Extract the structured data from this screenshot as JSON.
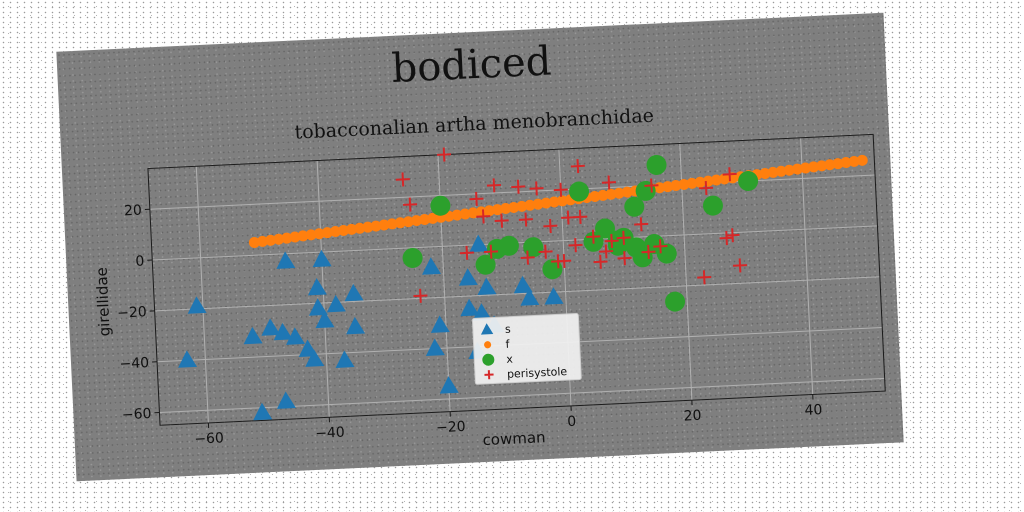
{
  "chart_data": {
    "type": "scatter",
    "title": "bodiced",
    "subtitle": "tobacconalian artha menobranchidae",
    "xlabel": "cowman",
    "ylabel": "girellidae",
    "xlim": [
      -68,
      52
    ],
    "ylim": [
      -65,
      36
    ],
    "xticks": [
      -60,
      -40,
      -20,
      0,
      20,
      40
    ],
    "yticks": [
      -60,
      -40,
      -20,
      0,
      20
    ],
    "grid": true,
    "legend_position": "lower-center",
    "series": [
      {
        "name": "s",
        "marker": "triangle",
        "color": "#1f77b4",
        "points": [
          [
            -63,
            -40
          ],
          [
            -61,
            -19
          ],
          [
            -52,
            -32
          ],
          [
            -51,
            -62
          ],
          [
            -49,
            -29
          ],
          [
            -47,
            -58
          ],
          [
            -47,
            -31
          ],
          [
            -46,
            -3
          ],
          [
            -45,
            -33
          ],
          [
            -43,
            -38
          ],
          [
            -42,
            -42
          ],
          [
            -41,
            -14
          ],
          [
            -41,
            -22
          ],
          [
            -40,
            -3
          ],
          [
            -40,
            -27
          ],
          [
            -38,
            -21
          ],
          [
            -37,
            -43
          ],
          [
            -35,
            -17
          ],
          [
            -35,
            -30
          ],
          [
            -22,
            -8
          ],
          [
            -22,
            -40
          ],
          [
            -21,
            -31
          ],
          [
            -20,
            -55
          ],
          [
            -16,
            -13
          ],
          [
            -16,
            -25
          ],
          [
            -15,
            -42
          ],
          [
            -14,
            0
          ],
          [
            -14,
            -27
          ],
          [
            -13,
            -17
          ],
          [
            -12,
            -32
          ],
          [
            -7,
            -17
          ],
          [
            -6,
            -22
          ],
          [
            -2,
            -22
          ]
        ]
      },
      {
        "name": "f",
        "marker": "circle-small",
        "color": "#ff7f0e",
        "line": {
          "x_start": -51,
          "x_end": 50,
          "y_start": 5,
          "y_end": 26,
          "count": 76
        }
      },
      {
        "name": "x",
        "marker": "circle",
        "color": "#2ca02c",
        "points": [
          [
            -25,
            -4
          ],
          [
            -20,
            16
          ],
          [
            -13,
            -8
          ],
          [
            -11,
            -2
          ],
          [
            -9,
            -1
          ],
          [
            -5,
            -2
          ],
          [
            -2,
            -11
          ],
          [
            3,
            19
          ],
          [
            5,
            -1
          ],
          [
            7,
            4
          ],
          [
            9,
            -3
          ],
          [
            9,
            -1
          ],
          [
            10,
            0
          ],
          [
            12,
            -4
          ],
          [
            12,
            12
          ],
          [
            13,
            -8
          ],
          [
            14,
            18
          ],
          [
            15,
            -3
          ],
          [
            16,
            28
          ],
          [
            17,
            -7
          ],
          [
            18,
            -26
          ],
          [
            25,
            11
          ],
          [
            31,
            20
          ]
        ]
      },
      {
        "name": "perisystole",
        "marker": "plus",
        "color": "#d62728",
        "points": [
          [
            -26,
            27
          ],
          [
            -25,
            17
          ],
          [
            -24,
            -19
          ],
          [
            -19,
            36
          ],
          [
            -16,
            -3
          ],
          [
            -14,
            18
          ],
          [
            -13,
            11
          ],
          [
            -12,
            -3
          ],
          [
            -11,
            23
          ],
          [
            -10,
            9
          ],
          [
            -7,
            22
          ],
          [
            -6,
            -6
          ],
          [
            -6,
            9
          ],
          [
            -4,
            21
          ],
          [
            -3,
            -4
          ],
          [
            -2,
            6
          ],
          [
            -1,
            -8
          ],
          [
            0,
            -8
          ],
          [
            0,
            20
          ],
          [
            1,
            9
          ],
          [
            2,
            -2
          ],
          [
            3,
            29
          ],
          [
            3,
            9
          ],
          [
            5,
            1
          ],
          [
            6,
            -9
          ],
          [
            7,
            -5
          ],
          [
            8,
            -1
          ],
          [
            8,
            22
          ],
          [
            10,
            0
          ],
          [
            10,
            -8
          ],
          [
            13,
            5
          ],
          [
            14,
            -6
          ],
          [
            15,
            20
          ],
          [
            16,
            -4
          ],
          [
            23,
            -17
          ],
          [
            24,
            18
          ],
          [
            27,
            -2
          ],
          [
            28,
            -1
          ],
          [
            28,
            23
          ],
          [
            29,
            -13
          ]
        ]
      }
    ]
  }
}
